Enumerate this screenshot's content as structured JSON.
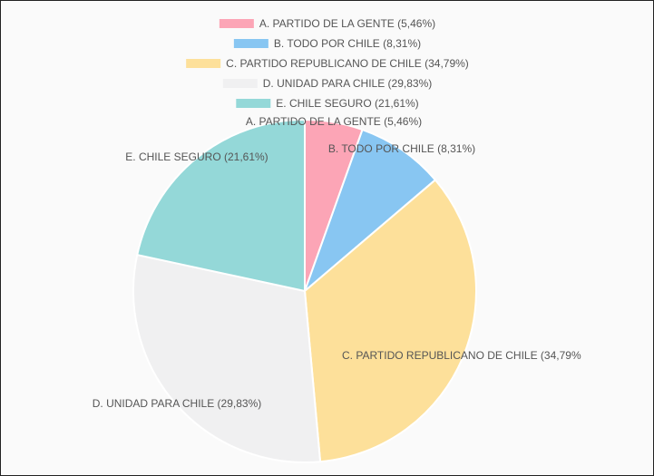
{
  "chart_data": {
    "type": "pie",
    "title": "",
    "legend_position": "top",
    "categories": [
      "A. PARTIDO DE LA GENTE (5,46%)",
      "B. TODO POR CHILE (8,31%)",
      "C. PARTIDO REPUBLICANO DE CHILE (34,79%)",
      "D. UNIDAD PARA CHILE (29,83%)",
      "E. CHILE SEGURO (21,61%)"
    ],
    "values": [
      5.46,
      8.31,
      34.79,
      29.83,
      21.61
    ],
    "colors": [
      "#fca5b6",
      "#88c6f2",
      "#fde09a",
      "#f0f0f1",
      "#94d8d8"
    ],
    "slice_labels": [
      "A. PARTIDO DE LA GENTE (5,46%)",
      "B. TODO POR CHILE (8,31%)",
      "C. PARTIDO REPUBLICANO DE CHILE (34,79%",
      "D. UNIDAD PARA CHILE (29,83%)",
      "E. CHILE SEGURO (21,61%)"
    ]
  }
}
